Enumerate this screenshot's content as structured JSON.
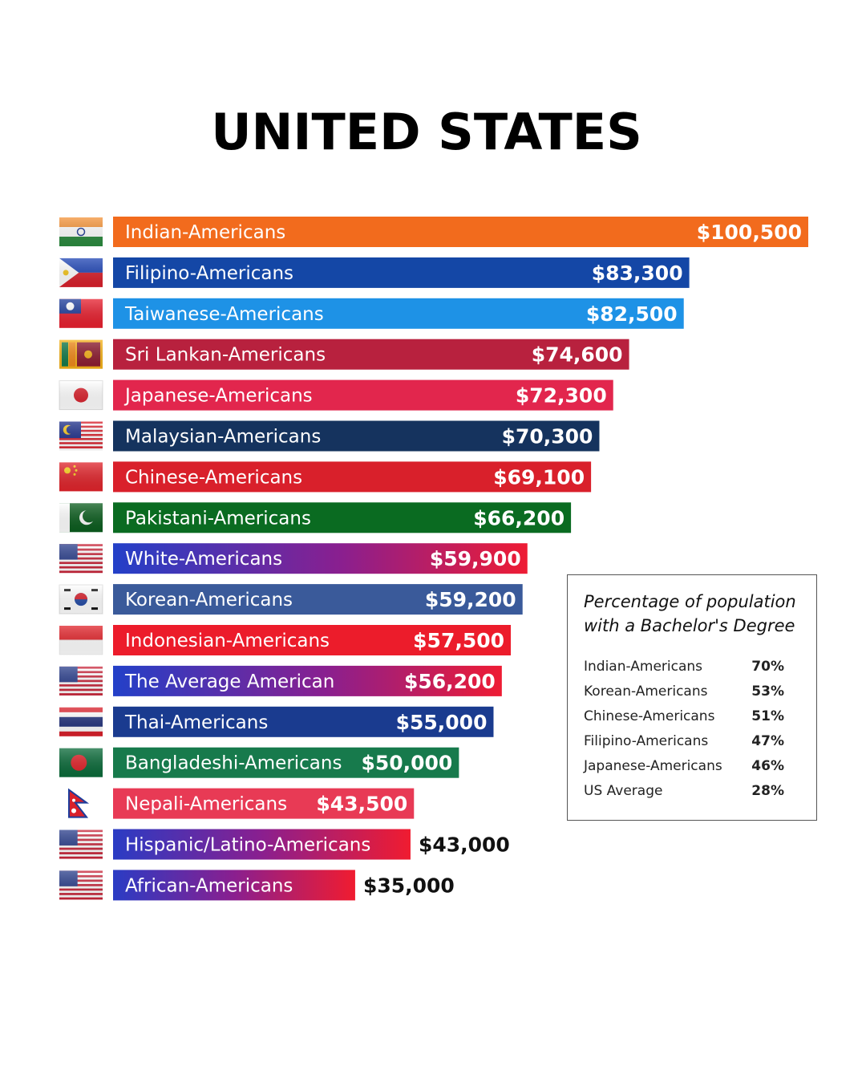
{
  "chart_data": {
    "type": "bar",
    "orientation": "horizontal",
    "title": "UNITED STATES",
    "xlim": [
      0,
      100500
    ],
    "categories": [
      "Indian-Americans",
      "Filipino-Americans",
      "Taiwanese-Americans",
      "Sri Lankan-Americans",
      "Japanese-Americans",
      "Malaysian-Americans",
      "Chinese-Americans",
      "Pakistani-Americans",
      "White-Americans",
      "Korean-Americans",
      "Indonesian-Americans",
      "The Average American",
      "Thai-Americans",
      "Bangladeshi-Americans",
      "Nepali-Americans",
      "Hispanic/Latino-Americans",
      "African-Americans"
    ],
    "values": [
      100500,
      83300,
      82500,
      74600,
      72300,
      70300,
      69100,
      66200,
      59900,
      59200,
      57500,
      56200,
      55000,
      50000,
      43500,
      43000,
      35000
    ],
    "value_labels": [
      "$100,500",
      "$83,300",
      "$82,500",
      "$74,600",
      "$72,300",
      "$70,300",
      "$69,100",
      "$66,200",
      "$59,900",
      "$59,200",
      "$57,500",
      "$56,200",
      "$55,000",
      "$50,000",
      "$43,500",
      "$43,000",
      "$35,000"
    ],
    "bar_colors": [
      "#f26b1d",
      "#1447a6",
      "#1e92e6",
      "#b8213e",
      "#e2264d",
      "#15335e",
      "#d9202b",
      "#0a6b21",
      "gradient-white",
      "#3a5a9a",
      "#ec1c2b",
      "gradient-white",
      "#1a3b8f",
      "#177a4c",
      "#e83a55",
      "gradient-red",
      "gradient-red"
    ],
    "flags": [
      "india-flag-icon",
      "philippines-flag-icon",
      "taiwan-flag-icon",
      "sri-lanka-flag-icon",
      "japan-flag-icon",
      "malaysia-flag-icon",
      "china-flag-icon",
      "pakistan-flag-icon",
      "usa-flag-icon",
      "south-korea-flag-icon",
      "indonesia-flag-icon",
      "usa-flag-icon",
      "thailand-flag-icon",
      "bangladesh-flag-icon",
      "nepal-flag-icon",
      "usa-flag-icon",
      "usa-flag-icon"
    ]
  },
  "legend": {
    "title": "Percentage of population with a Bachelor's Degree",
    "title_line1": "Percentage of population",
    "title_line2": "with a Bachelor's Degree",
    "rows": [
      {
        "name": "Indian-Americans",
        "value": "70%"
      },
      {
        "name": "Korean-Americans",
        "value": "53%"
      },
      {
        "name": "Chinese-Americans",
        "value": "51%"
      },
      {
        "name": "Filipino-Americans",
        "value": "47%"
      },
      {
        "name": "Japanese-Americans",
        "value": "46%"
      },
      {
        "name": "US Average",
        "value": "28%"
      }
    ]
  }
}
